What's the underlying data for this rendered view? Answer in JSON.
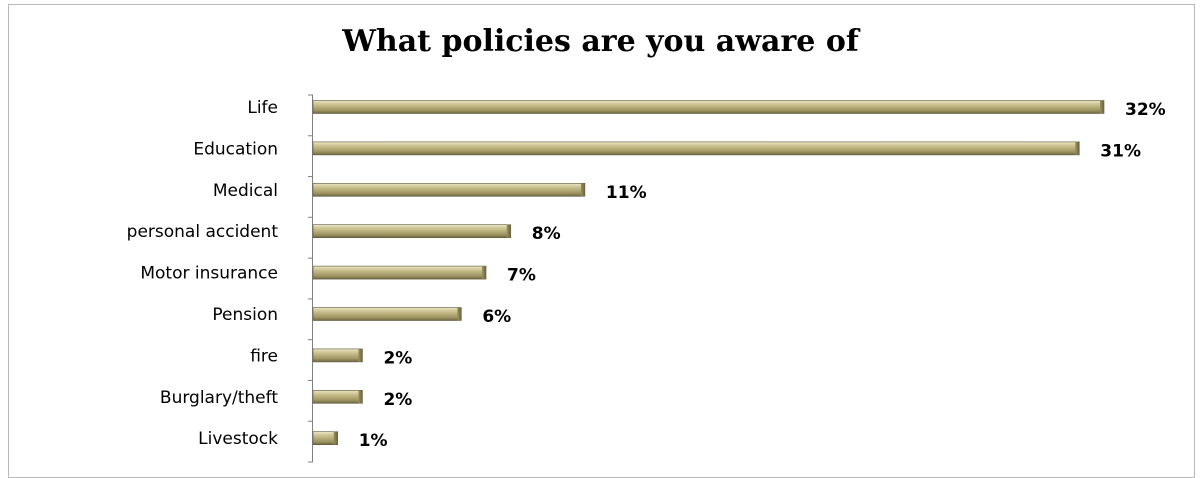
{
  "chart_data": {
    "type": "bar",
    "orientation": "horizontal",
    "title": "What policies are you aware of",
    "categories": [
      "Life",
      "Education",
      "Medical",
      "personal accident",
      "Motor insurance",
      "Pension",
      "fire",
      "Burglary/theft",
      "Livestock"
    ],
    "values": [
      32,
      31,
      11,
      8,
      7,
      6,
      2,
      2,
      1
    ],
    "value_labels": [
      "32%",
      "31%",
      "11%",
      "8%",
      "7%",
      "6%",
      "2%",
      "2%",
      "1%"
    ],
    "xlim": [
      0,
      32
    ],
    "grid": false,
    "legend": "none",
    "bar_color": "#a59d6b",
    "bar_highlight": "#e3dcb4",
    "bar_shadow": "#6b6440"
  }
}
